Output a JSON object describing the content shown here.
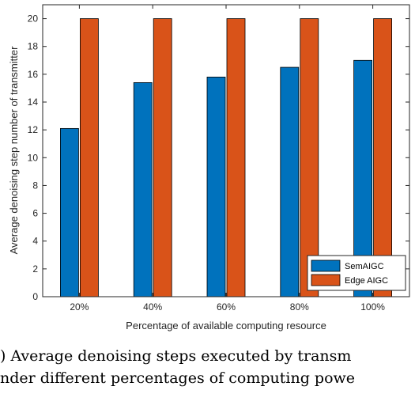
{
  "chart_data": {
    "type": "bar",
    "title": "",
    "xlabel": "Percentage of available computing resource",
    "ylabel": "Average denoising step number of transmitter",
    "categories": [
      "20%",
      "40%",
      "60%",
      "80%",
      "100%"
    ],
    "ylim": [
      0,
      21
    ],
    "yticks": [
      0,
      2,
      4,
      6,
      8,
      10,
      12,
      14,
      16,
      18,
      20
    ],
    "grid": false,
    "legend_position": "bottom-right",
    "series": [
      {
        "name": "SemAIGC",
        "color": "#0072BD",
        "values": [
          12.1,
          15.4,
          15.8,
          16.5,
          17.0
        ]
      },
      {
        "name": "Edge AIGC",
        "color": "#D95319",
        "values": [
          20,
          20,
          20,
          20,
          20
        ]
      }
    ]
  },
  "caption": {
    "line1": ") Average denoising steps executed by transm",
    "line2": "nder different percentages of computing powe"
  }
}
